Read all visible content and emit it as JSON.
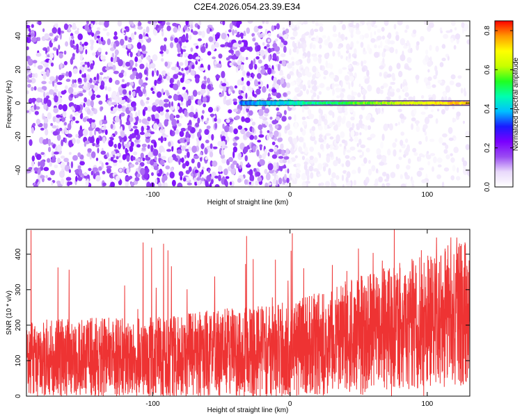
{
  "title": "C2E4.2026.054.23.39.E34",
  "chart_data": [
    {
      "type": "heatmap",
      "title": "C2E4.2026.054.23.39.E34",
      "xlabel": "Height of straight line (km)",
      "ylabel": "Frequency (Hz)",
      "xlim": [
        -192,
        131
      ],
      "ylim": [
        -50,
        49
      ],
      "xticks": [
        -100,
        0,
        100
      ],
      "xtick_labels": [
        "-100",
        "0",
        "100"
      ],
      "yticks": [
        -40,
        -20,
        0,
        20,
        40
      ],
      "ytick_labels": [
        "-40",
        "-20",
        "0",
        "20",
        "40"
      ],
      "colorbar": {
        "label": "Normalized spectral amplitude",
        "range": [
          0.0,
          0.85
        ],
        "ticks": [
          0.0,
          0.2,
          0.4,
          0.6,
          0.8
        ],
        "tick_labels": [
          "0.0",
          "0.2",
          "0.4",
          "0.6",
          "0.8"
        ],
        "colormap": [
          "#ffffff",
          "#e9d9fb",
          "#9a4cf2",
          "#7a00ff",
          "#1a1aff",
          "#00c0ff",
          "#00ffb0",
          "#20ff20",
          "#c8ff00",
          "#ffff00",
          "#ff9900",
          "#ff0000"
        ]
      },
      "signal": {
        "frequency": 0,
        "x_start": -36,
        "x_end": 131,
        "amplitude_start": 0.35,
        "amplitude_end": 0.75
      },
      "background_noise": {
        "dense_region_x": [
          -192,
          0
        ],
        "dense_amplitude": 0.12,
        "sparse_region_x": [
          0,
          131
        ],
        "sparse_amplitude": 0.04
      }
    },
    {
      "type": "line",
      "xlabel": "Height of straight line (km)",
      "ylabel": "SNR (10 * v/v)",
      "xlim": [
        -192,
        131
      ],
      "ylim": [
        0,
        470
      ],
      "xticks": [
        -100,
        0,
        100
      ],
      "xtick_labels": [
        "-100",
        "0",
        "100"
      ],
      "yticks": [
        0,
        100,
        200,
        300,
        400
      ],
      "ytick_labels": [
        "0",
        "100",
        "200",
        "300",
        "400"
      ],
      "series": [
        {
          "name": "SNR",
          "color": "#ee3333",
          "x_range": [
            -192,
            131
          ],
          "envelope_low": [
            {
              "x": -192,
              "y": 5
            },
            {
              "x": 0,
              "y": 5
            },
            {
              "x": 131,
              "y": 40
            }
          ],
          "envelope_high": [
            {
              "x": -192,
              "y": 210
            },
            {
              "x": -100,
              "y": 220
            },
            {
              "x": 0,
              "y": 260
            },
            {
              "x": 50,
              "y": 330
            },
            {
              "x": 131,
              "y": 430
            }
          ],
          "peak_max": 470
        }
      ]
    }
  ]
}
